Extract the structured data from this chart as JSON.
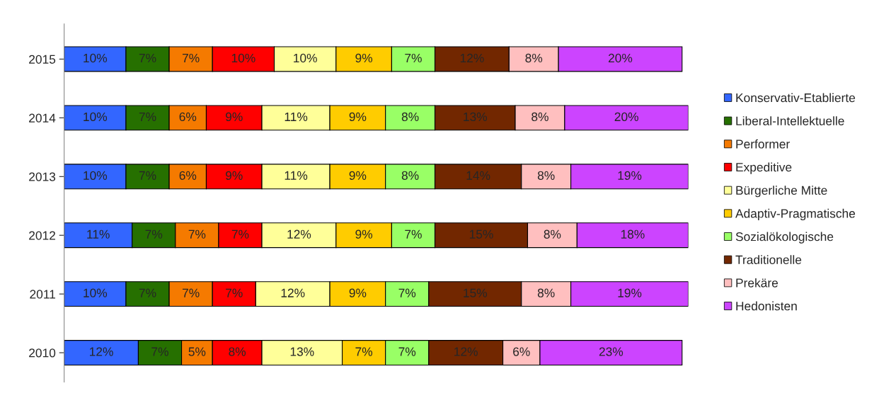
{
  "chart_data": {
    "type": "bar",
    "orientation": "horizontal",
    "stacked": true,
    "legend": "right",
    "grid": false,
    "tick_labels": "y",
    "categories": [
      "2015",
      "2014",
      "2013",
      "2012",
      "2011",
      "2010"
    ],
    "series": [
      {
        "name": "Konservativ-Etablierte",
        "color": "#3366ff",
        "values": [
          10,
          10,
          10,
          11,
          10,
          12
        ],
        "value_labels": [
          "10%",
          "10%",
          "10%",
          "11%",
          "10%",
          "12%"
        ]
      },
      {
        "name": "Liberal-Intellektuelle",
        "color": "#267000",
        "values": [
          7,
          7,
          7,
          7,
          7,
          7
        ],
        "value_labels": [
          "7%",
          "7%",
          "7%",
          "7%",
          "7%",
          "7%"
        ]
      },
      {
        "name": "Performer",
        "color": "#f57a00",
        "values": [
          7,
          6,
          6,
          7,
          7,
          5
        ],
        "value_labels": [
          "7%",
          "6%",
          "6%",
          "7%",
          "7%",
          "5%"
        ]
      },
      {
        "name": "Expeditive",
        "color": "#ff0000",
        "values": [
          10,
          9,
          9,
          7,
          7,
          8
        ],
        "value_labels": [
          "10%",
          "9%",
          "9%",
          "7%",
          "7%",
          "8%"
        ]
      },
      {
        "name": "Bürgerliche Mitte",
        "color": "#ffff99",
        "values": [
          10,
          11,
          11,
          12,
          12,
          13
        ],
        "value_labels": [
          "10%",
          "11%",
          "11%",
          "12%",
          "12%",
          "13%"
        ]
      },
      {
        "name": "Adaptiv-Pragmatische",
        "color": "#ffcc00",
        "values": [
          9,
          9,
          9,
          9,
          9,
          7
        ],
        "value_labels": [
          "9%",
          "9%",
          "9%",
          "9%",
          "9%",
          "7%"
        ]
      },
      {
        "name": "Sozialökologische",
        "color": "#99ff66",
        "values": [
          7,
          8,
          8,
          7,
          7,
          7
        ],
        "value_labels": [
          "7%",
          "8%",
          "8%",
          "7%",
          "7%",
          "7%"
        ]
      },
      {
        "name": "Traditionelle",
        "color": "#722700",
        "values": [
          12,
          13,
          14,
          15,
          15,
          12
        ],
        "value_labels": [
          "12%",
          "13%",
          "14%",
          "15%",
          "15%",
          "12%"
        ]
      },
      {
        "name": "Prekäre",
        "color": "#ffbfbf",
        "values": [
          8,
          8,
          8,
          8,
          8,
          6
        ],
        "value_labels": [
          "8%",
          "8%",
          "8%",
          "8%",
          "8%",
          "6%"
        ]
      },
      {
        "name": "Hedonisten",
        "color": "#cc44ff",
        "values": [
          20,
          20,
          19,
          18,
          19,
          23
        ],
        "value_labels": [
          "20%",
          "20%",
          "19%",
          "18%",
          "19%",
          "23%"
        ]
      }
    ]
  }
}
